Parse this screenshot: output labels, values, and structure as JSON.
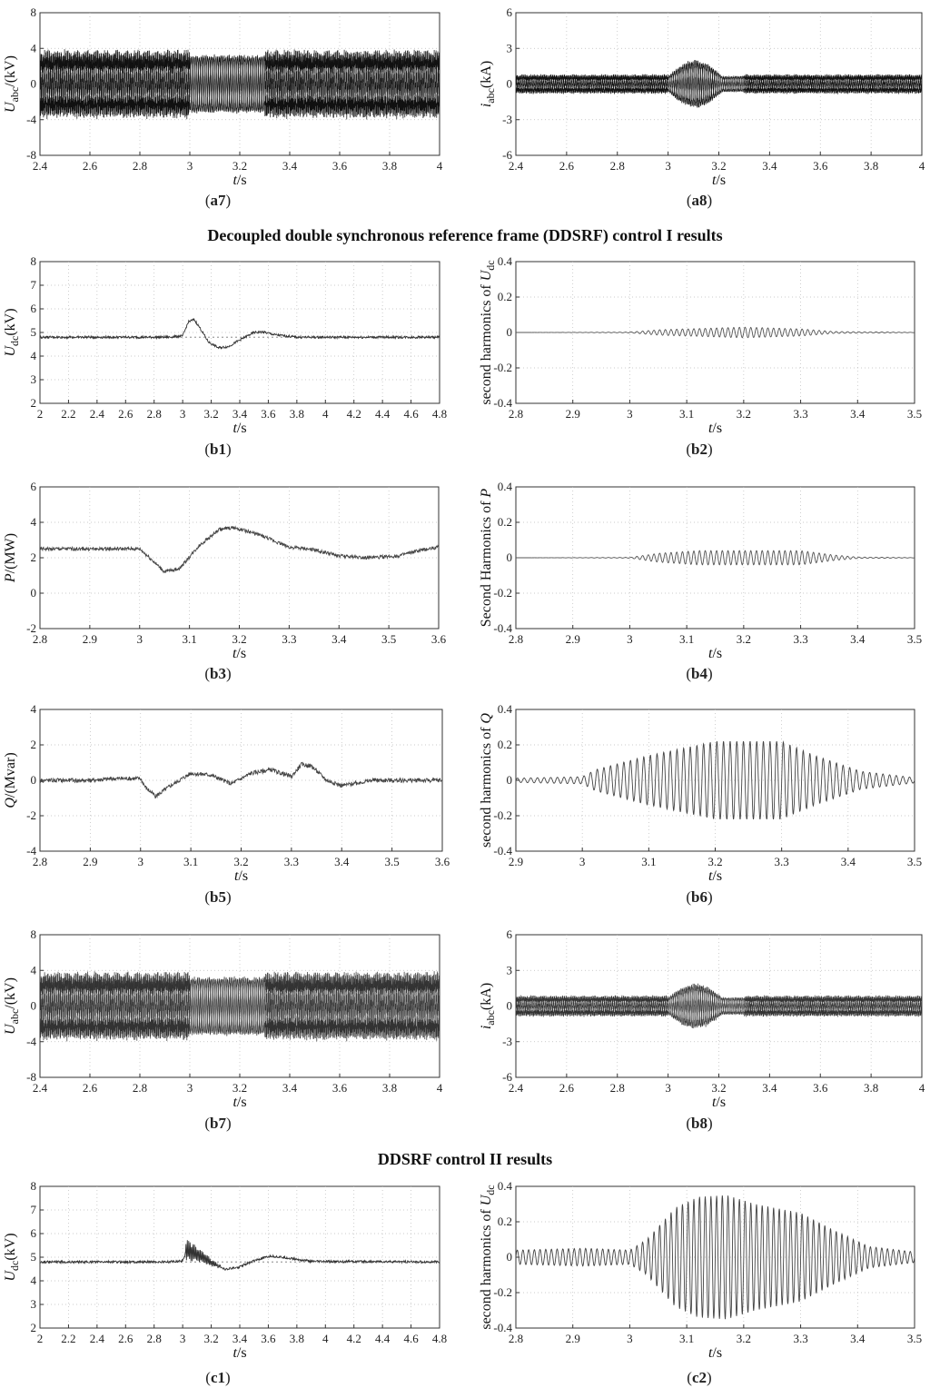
{
  "section_titles": {
    "ddsrf1": "Decoupled double synchronous reference frame (DDSRF) control I results",
    "ddsrf2": "DDSRF control II results"
  },
  "chart_data": [
    {
      "id": "a7",
      "panel": "(a7)",
      "type": "line",
      "title": "",
      "xlabel": "t/s",
      "ylabel": "Uabc/(kV)",
      "xlim": [
        2.4,
        4.0
      ],
      "ylim": [
        -8,
        8
      ],
      "xticks": [
        2.4,
        2.6,
        2.8,
        3.0,
        3.2,
        3.4,
        3.6,
        3.8,
        4.0
      ],
      "yticks": [
        -8,
        -4,
        0,
        4,
        8
      ],
      "signal": {
        "kind": "abc_voltage",
        "amplitude_kV": 2.8,
        "fault_amplitude_kV": 3.0,
        "fault_start_s": 3.0,
        "fault_end_s": 3.3
      },
      "color": "#111111"
    },
    {
      "id": "a8",
      "panel": "(a8)",
      "type": "line",
      "title": "",
      "xlabel": "t/s",
      "ylabel": "iabc(kA)",
      "xlim": [
        2.4,
        4.0
      ],
      "ylim": [
        -6,
        6
      ],
      "xticks": [
        2.4,
        2.6,
        2.8,
        3.0,
        3.2,
        3.4,
        3.6,
        3.8,
        4.0
      ],
      "yticks": [
        -6,
        -3,
        0,
        3,
        6
      ],
      "signal": {
        "kind": "abc_current",
        "amplitude_kA": 0.6,
        "fault_peak_kA": 1.8,
        "fault_start_s": 3.0,
        "fault_end_s": 3.3
      },
      "color": "#111111"
    },
    {
      "id": "b1",
      "panel": "(b1)",
      "type": "line",
      "title": "",
      "xlabel": "t/s",
      "ylabel": "Udc(kV)",
      "xlim": [
        2.0,
        4.8
      ],
      "ylim": [
        2,
        8
      ],
      "xticks": [
        2.0,
        2.2,
        2.4,
        2.6,
        2.8,
        3.0,
        3.2,
        3.4,
        3.6,
        3.8,
        4.0,
        4.2,
        4.4,
        4.6,
        4.8
      ],
      "yticks": [
        2,
        3,
        4,
        5,
        6,
        7,
        8
      ],
      "reference_line": 4.8,
      "points": [
        [
          2.0,
          4.8
        ],
        [
          2.9,
          4.8
        ],
        [
          3.0,
          4.85
        ],
        [
          3.04,
          5.45
        ],
        [
          3.08,
          5.55
        ],
        [
          3.12,
          5.2
        ],
        [
          3.18,
          4.6
        ],
        [
          3.25,
          4.35
        ],
        [
          3.32,
          4.4
        ],
        [
          3.42,
          4.75
        ],
        [
          3.5,
          5.0
        ],
        [
          3.56,
          5.02
        ],
        [
          3.65,
          4.9
        ],
        [
          3.8,
          4.8
        ],
        [
          4.8,
          4.8
        ]
      ],
      "ripple": 0.05,
      "color": "#333333"
    },
    {
      "id": "b2",
      "panel": "(b2)",
      "type": "line",
      "title": "",
      "xlabel": "t/s",
      "ylabel": "second harmonics of Udc",
      "xlim": [
        2.8,
        3.5
      ],
      "ylim": [
        -0.4,
        0.4
      ],
      "xticks": [
        2.8,
        2.9,
        3.0,
        3.1,
        3.2,
        3.3,
        3.4,
        3.5
      ],
      "yticks": [
        -0.4,
        -0.2,
        0,
        0.2,
        0.4
      ],
      "signal": {
        "kind": "envelope",
        "freq_hz": 100,
        "envelope": [
          [
            2.8,
            0.0
          ],
          [
            3.0,
            0.002
          ],
          [
            3.05,
            0.015
          ],
          [
            3.2,
            0.03
          ],
          [
            3.3,
            0.02
          ],
          [
            3.36,
            0.005
          ],
          [
            3.5,
            0.001
          ]
        ]
      },
      "color": "#555555"
    },
    {
      "id": "b3",
      "panel": "(b3)",
      "type": "line",
      "title": "",
      "xlabel": "t/s",
      "ylabel": "P/(MW)",
      "xlim": [
        2.8,
        3.6
      ],
      "ylim": [
        -2,
        6
      ],
      "xticks": [
        2.8,
        2.9,
        3.0,
        3.1,
        3.2,
        3.3,
        3.4,
        3.5,
        3.6
      ],
      "yticks": [
        -2,
        0,
        2,
        4,
        6
      ],
      "points": [
        [
          2.8,
          2.5
        ],
        [
          3.0,
          2.5
        ],
        [
          3.02,
          2.0
        ],
        [
          3.05,
          1.2
        ],
        [
          3.08,
          1.4
        ],
        [
          3.12,
          2.7
        ],
        [
          3.16,
          3.6
        ],
        [
          3.19,
          3.7
        ],
        [
          3.24,
          3.3
        ],
        [
          3.3,
          2.6
        ],
        [
          3.35,
          2.45
        ],
        [
          3.4,
          2.1
        ],
        [
          3.46,
          2.0
        ],
        [
          3.52,
          2.1
        ],
        [
          3.56,
          2.4
        ],
        [
          3.6,
          2.6
        ]
      ],
      "ripple": 0.1,
      "color": "#444444"
    },
    {
      "id": "b4",
      "panel": "(b4)",
      "type": "line",
      "title": "",
      "xlabel": "t/s",
      "ylabel": "Second Harmonics of P",
      "xlim": [
        2.8,
        3.5
      ],
      "ylim": [
        -0.4,
        0.4
      ],
      "xticks": [
        2.8,
        2.9,
        3.0,
        3.1,
        3.2,
        3.3,
        3.4,
        3.5
      ],
      "yticks": [
        -0.4,
        -0.2,
        0,
        0.2,
        0.4
      ],
      "signal": {
        "kind": "envelope",
        "freq_hz": 100,
        "envelope": [
          [
            2.8,
            0.0
          ],
          [
            3.0,
            0.002
          ],
          [
            3.05,
            0.025
          ],
          [
            3.12,
            0.04
          ],
          [
            3.3,
            0.04
          ],
          [
            3.36,
            0.015
          ],
          [
            3.4,
            0.004
          ],
          [
            3.5,
            0.001
          ]
        ]
      },
      "color": "#555555"
    },
    {
      "id": "b5",
      "panel": "(b5)",
      "type": "line",
      "title": "",
      "xlabel": "t/s",
      "ylabel": "Q/(Mvar)",
      "xlim": [
        2.8,
        3.6
      ],
      "ylim": [
        -4,
        4
      ],
      "xticks": [
        2.8,
        2.9,
        3.0,
        3.1,
        3.2,
        3.3,
        3.4,
        3.5,
        3.6
      ],
      "yticks": [
        -4,
        -2,
        0,
        2,
        4
      ],
      "points": [
        [
          2.8,
          0.0
        ],
        [
          2.9,
          0.0
        ],
        [
          2.95,
          0.1
        ],
        [
          3.0,
          0.1
        ],
        [
          3.01,
          -0.4
        ],
        [
          3.03,
          -0.9
        ],
        [
          3.06,
          -0.3
        ],
        [
          3.1,
          0.4
        ],
        [
          3.14,
          0.3
        ],
        [
          3.18,
          -0.2
        ],
        [
          3.22,
          0.4
        ],
        [
          3.26,
          0.6
        ],
        [
          3.3,
          0.2
        ],
        [
          3.32,
          0.9
        ],
        [
          3.34,
          0.8
        ],
        [
          3.37,
          0.0
        ],
        [
          3.4,
          -0.3
        ],
        [
          3.46,
          0.0
        ],
        [
          3.6,
          0.0
        ]
      ],
      "ripple": 0.12,
      "color": "#444444"
    },
    {
      "id": "b6",
      "panel": "(b6)",
      "type": "line",
      "title": "",
      "xlabel": "t/s",
      "ylabel": "second harmonics of Q",
      "xlim": [
        2.9,
        3.5
      ],
      "ylim": [
        -0.4,
        0.4
      ],
      "xticks": [
        2.9,
        3.0,
        3.1,
        3.2,
        3.3,
        3.4,
        3.5
      ],
      "yticks": [
        -0.4,
        -0.2,
        0,
        0.2,
        0.4
      ],
      "signal": {
        "kind": "envelope",
        "freq_hz": 100,
        "envelope": [
          [
            2.9,
            0.012
          ],
          [
            3.0,
            0.02
          ],
          [
            3.02,
            0.06
          ],
          [
            3.1,
            0.14
          ],
          [
            3.2,
            0.22
          ],
          [
            3.3,
            0.22
          ],
          [
            3.35,
            0.14
          ],
          [
            3.42,
            0.05
          ],
          [
            3.5,
            0.015
          ]
        ]
      },
      "color": "#444444"
    },
    {
      "id": "b7",
      "panel": "(b7)",
      "type": "line",
      "title": "",
      "xlabel": "t/s",
      "ylabel": "Uabc/(kV)",
      "xlim": [
        2.4,
        4.0
      ],
      "ylim": [
        -8,
        8
      ],
      "xticks": [
        2.4,
        2.6,
        2.8,
        3.0,
        3.2,
        3.4,
        3.6,
        3.8,
        4.0
      ],
      "yticks": [
        -8,
        -4,
        0,
        4,
        8
      ],
      "signal": {
        "kind": "abc_voltage",
        "amplitude_kV": 2.8,
        "fault_amplitude_kV": 3.0,
        "fault_start_s": 3.0,
        "fault_end_s": 3.3
      },
      "color": "#333333"
    },
    {
      "id": "b8",
      "panel": "(b8)",
      "type": "line",
      "title": "",
      "xlabel": "t/s",
      "ylabel": "iabc(kA)",
      "xlim": [
        2.4,
        4.0
      ],
      "ylim": [
        -6,
        6
      ],
      "xticks": [
        2.4,
        2.6,
        2.8,
        3.0,
        3.2,
        3.4,
        3.6,
        3.8,
        4.0
      ],
      "yticks": [
        -6,
        -3,
        0,
        3,
        6
      ],
      "signal": {
        "kind": "abc_current",
        "amplitude_kA": 0.65,
        "fault_peak_kA": 1.7,
        "fault_start_s": 3.0,
        "fault_end_s": 3.3
      },
      "color": "#333333"
    },
    {
      "id": "c1",
      "panel": "(c1)",
      "type": "line",
      "title": "",
      "xlabel": "t/s",
      "ylabel": "Udc(kV)",
      "xlim": [
        2.0,
        4.8
      ],
      "ylim": [
        2,
        8
      ],
      "xticks": [
        2.0,
        2.2,
        2.4,
        2.6,
        2.8,
        3.0,
        3.2,
        3.4,
        3.6,
        3.8,
        4.0,
        4.2,
        4.4,
        4.6,
        4.8
      ],
      "yticks": [
        2,
        3,
        4,
        5,
        6,
        7,
        8
      ],
      "reference_line": 4.8,
      "points": [
        [
          2.0,
          4.8
        ],
        [
          2.9,
          4.8
        ],
        [
          3.0,
          4.85
        ],
        [
          3.03,
          5.3
        ],
        [
          3.08,
          5.2
        ],
        [
          3.15,
          4.95
        ],
        [
          3.22,
          4.7
        ],
        [
          3.3,
          4.5
        ],
        [
          3.38,
          4.55
        ],
        [
          3.5,
          4.85
        ],
        [
          3.62,
          5.05
        ],
        [
          3.72,
          4.98
        ],
        [
          3.9,
          4.82
        ],
        [
          4.8,
          4.8
        ]
      ],
      "ripple": 0.05,
      "burst": {
        "start": 3.02,
        "end": 3.28,
        "amplitude": 0.45
      },
      "color": "#333333"
    },
    {
      "id": "c2",
      "panel": "(c2)",
      "type": "line",
      "title": "",
      "xlabel": "t/s",
      "ylabel": "second harmonics of Udc",
      "xlim": [
        2.8,
        3.5
      ],
      "ylim": [
        -0.4,
        0.4
      ],
      "xticks": [
        2.8,
        2.9,
        3.0,
        3.1,
        3.2,
        3.3,
        3.4,
        3.5
      ],
      "yticks": [
        -0.4,
        -0.2,
        0,
        0.2,
        0.4
      ],
      "signal": {
        "kind": "envelope",
        "freq_hz": 100,
        "envelope": [
          [
            2.8,
            0.04
          ],
          [
            2.92,
            0.05
          ],
          [
            3.0,
            0.04
          ],
          [
            3.03,
            0.1
          ],
          [
            3.08,
            0.28
          ],
          [
            3.12,
            0.34
          ],
          [
            3.17,
            0.35
          ],
          [
            3.22,
            0.3
          ],
          [
            3.3,
            0.25
          ],
          [
            3.36,
            0.15
          ],
          [
            3.42,
            0.06
          ],
          [
            3.5,
            0.03
          ]
        ]
      },
      "color": "#444444"
    }
  ]
}
